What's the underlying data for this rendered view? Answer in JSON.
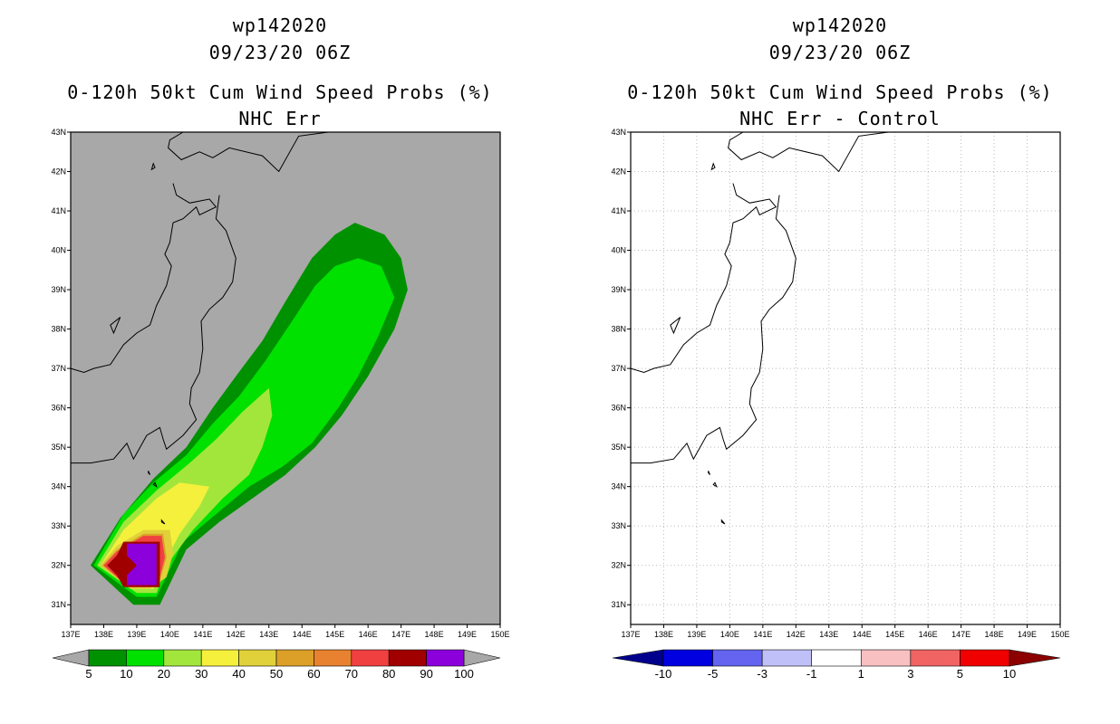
{
  "chart_data": [
    {
      "type": "contour-map",
      "id": "left",
      "title_lines": [
        "wp142020",
        "09/23/20 06Z"
      ],
      "subtitle_lines": [
        "0-120h 50kt Cum Wind Speed Probs (%)",
        "NHC Err"
      ],
      "x_ticks": [
        "137E",
        "138E",
        "139E",
        "140E",
        "141E",
        "142E",
        "143E",
        "144E",
        "145E",
        "146E",
        "147E",
        "148E",
        "149E",
        "150E"
      ],
      "y_ticks": [
        "31N",
        "32N",
        "33N",
        "34N",
        "35N",
        "36N",
        "37N",
        "38N",
        "39N",
        "40N",
        "41N",
        "42N",
        "43N"
      ],
      "xlim": [
        137,
        150
      ],
      "ylim": [
        30.5,
        43
      ],
      "background": "#a8a8a8",
      "grid": false,
      "levels": [
        {
          "min": 5,
          "color": "#009100",
          "poly": [
            [
              137.6,
              32
            ],
            [
              138.5,
              33.2
            ],
            [
              139.5,
              34.2
            ],
            [
              140.5,
              35.0
            ],
            [
              141.3,
              36.0
            ],
            [
              142.0,
              36.8
            ],
            [
              142.8,
              37.7
            ],
            [
              143.5,
              38.7
            ],
            [
              144.3,
              39.8
            ],
            [
              145.0,
              40.4
            ],
            [
              145.6,
              40.7
            ],
            [
              146.5,
              40.4
            ],
            [
              147.0,
              39.8
            ],
            [
              147.2,
              39.0
            ],
            [
              146.8,
              38.0
            ],
            [
              146.0,
              36.8
            ],
            [
              145.2,
              35.8
            ],
            [
              144.4,
              35.0
            ],
            [
              143.5,
              34.3
            ],
            [
              142.5,
              33.7
            ],
            [
              141.5,
              33.1
            ],
            [
              140.5,
              32.4
            ],
            [
              139.7,
              31.0
            ],
            [
              138.9,
              31.0
            ]
          ]
        },
        {
          "min": 10,
          "color": "#00e100",
          "poly": [
            [
              137.7,
              32
            ],
            [
              138.6,
              33.3
            ],
            [
              139.5,
              34.1
            ],
            [
              140.5,
              34.8
            ],
            [
              141.3,
              35.6
            ],
            [
              142.1,
              36.3
            ],
            [
              142.9,
              37.2
            ],
            [
              143.7,
              38.2
            ],
            [
              144.4,
              39.1
            ],
            [
              145.0,
              39.6
            ],
            [
              145.7,
              39.8
            ],
            [
              146.4,
              39.6
            ],
            [
              146.8,
              38.8
            ],
            [
              146.3,
              37.8
            ],
            [
              145.7,
              36.8
            ],
            [
              145.1,
              36.0
            ],
            [
              144.3,
              35.1
            ],
            [
              143.4,
              34.5
            ],
            [
              142.4,
              34.0
            ],
            [
              141.4,
              33.3
            ],
            [
              140.4,
              32.6
            ],
            [
              139.6,
              31.2
            ],
            [
              139.0,
              31.2
            ]
          ]
        },
        {
          "min": 20,
          "color": "#a2e63c",
          "poly": [
            [
              137.8,
              32
            ],
            [
              138.6,
              33.1
            ],
            [
              139.6,
              33.9
            ],
            [
              140.6,
              34.6
            ],
            [
              141.4,
              35.2
            ],
            [
              142.2,
              35.9
            ],
            [
              143.0,
              36.5
            ],
            [
              143.1,
              35.8
            ],
            [
              142.8,
              35.0
            ],
            [
              142.4,
              34.3
            ],
            [
              141.6,
              33.7
            ],
            [
              140.7,
              32.9
            ],
            [
              139.9,
              32.0
            ],
            [
              139.6,
              31.3
            ],
            [
              139.0,
              31.3
            ]
          ]
        },
        {
          "min": 30,
          "color": "#f5f03c",
          "poly": [
            [
              137.9,
              32
            ],
            [
              138.6,
              32.9
            ],
            [
              139.6,
              33.7
            ],
            [
              140.3,
              34.1
            ],
            [
              141.2,
              34.0
            ],
            [
              140.9,
              33.5
            ],
            [
              140.3,
              32.8
            ],
            [
              139.8,
              32.0
            ],
            [
              139.5,
              31.4
            ],
            [
              139.0,
              31.4
            ]
          ]
        },
        {
          "min": 40,
          "color": "#e0d13a",
          "poly": [
            [
              137.9,
              32
            ],
            [
              138.4,
              32.5
            ],
            [
              139.2,
              32.9
            ],
            [
              140.0,
              32.9
            ],
            [
              140.1,
              32.3
            ],
            [
              139.9,
              31.7
            ],
            [
              139.4,
              31.4
            ],
            [
              138.8,
              31.4
            ]
          ]
        },
        {
          "min": 50,
          "color": "#dca028",
          "poly": [
            [
              137.95,
              32
            ],
            [
              138.4,
              32.4
            ],
            [
              139.2,
              32.8
            ],
            [
              139.8,
              32.8
            ],
            [
              139.9,
              32.2
            ],
            [
              139.7,
              31.6
            ],
            [
              139.2,
              31.45
            ],
            [
              138.7,
              31.5
            ]
          ]
        },
        {
          "min": 70,
          "color": "#f04040",
          "poly": [
            [
              138.0,
              32
            ],
            [
              138.4,
              32.35
            ],
            [
              139.2,
              32.75
            ],
            [
              139.75,
              32.75
            ],
            [
              139.85,
              32.2
            ],
            [
              139.65,
              31.55
            ],
            [
              139.2,
              31.45
            ],
            [
              138.6,
              31.55
            ]
          ]
        },
        {
          "min": 80,
          "color": "#a00000",
          "poly": [
            [
              138.1,
              32
            ],
            [
              138.4,
              32.25
            ],
            [
              138.6,
              32.6
            ],
            [
              139.7,
              32.6
            ],
            [
              139.7,
              31.45
            ],
            [
              138.6,
              31.45
            ],
            [
              138.4,
              31.75
            ]
          ]
        },
        {
          "min": 90,
          "color": "#8c00dc",
          "poly": [
            [
              138.7,
              32.55
            ],
            [
              139.6,
              32.55
            ],
            [
              139.6,
              31.5
            ],
            [
              138.7,
              31.5
            ],
            [
              138.7,
              31.75
            ],
            [
              139.0,
              32.0
            ],
            [
              138.7,
              32.25
            ]
          ]
        }
      ]
    },
    {
      "type": "contour-map",
      "id": "right",
      "title_lines": [
        "wp142020",
        "09/23/20 06Z"
      ],
      "subtitle_lines": [
        "0-120h 50kt Cum Wind Speed Probs (%)",
        "NHC Err - Control"
      ],
      "x_ticks": [
        "137E",
        "138E",
        "139E",
        "140E",
        "141E",
        "142E",
        "143E",
        "144E",
        "145E",
        "146E",
        "147E",
        "148E",
        "149E",
        "150E"
      ],
      "y_ticks": [
        "31N",
        "32N",
        "33N",
        "34N",
        "35N",
        "36N",
        "37N",
        "38N",
        "39N",
        "40N",
        "41N",
        "42N",
        "43N"
      ],
      "xlim": [
        137,
        150
      ],
      "ylim": [
        30.5,
        43
      ],
      "background": "#ffffff",
      "grid": true,
      "levels": []
    }
  ],
  "colorbars": {
    "left": {
      "labels": [
        "5",
        "10",
        "20",
        "30",
        "40",
        "50",
        "60",
        "70",
        "80",
        "90",
        "100"
      ],
      "colors": [
        "#009100",
        "#00e100",
        "#a2e63c",
        "#f5f03c",
        "#e0d13a",
        "#dca028",
        "#e88230",
        "#f04040",
        "#a00000",
        "#8c00dc"
      ],
      "end_colors": [
        "#a8a8a8",
        "#a8a8a8"
      ]
    },
    "right": {
      "labels": [
        "-10",
        "-5",
        "-3",
        "-1",
        "1",
        "3",
        "5",
        "10"
      ],
      "colors": [
        "#0000e0",
        "#6464f0",
        "#c0c0f8",
        "#ffffff",
        "#f8c0c0",
        "#f06464",
        "#f00000"
      ],
      "end_colors": [
        "#00008c",
        "#8c0000"
      ]
    }
  }
}
